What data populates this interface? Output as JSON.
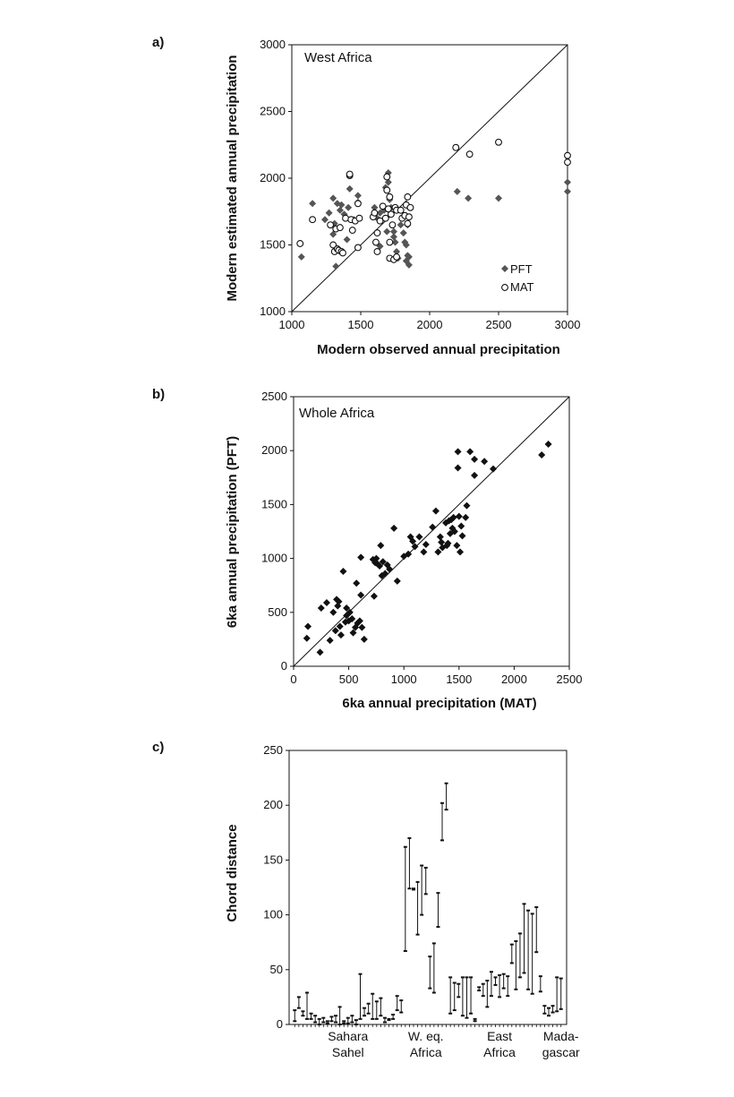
{
  "chart_data": [
    {
      "type": "scatter",
      "panel_label": "a)",
      "title": "West Africa",
      "xlabel": "Modern observed annual precipitation",
      "ylabel": "Modern estimated annual precipitation",
      "xlim": [
        1000,
        3000
      ],
      "ylim": [
        1000,
        3000
      ],
      "xticks": [
        "1000",
        "1500",
        "2000",
        "2500",
        "3000"
      ],
      "yticks": [
        "1000",
        "1500",
        "2000",
        "2500",
        "3000"
      ],
      "one_to_one_line": true,
      "legend_position": "bottom-right",
      "series": [
        {
          "name": "PFT",
          "marker": "filled-diamond",
          "color": "#555555",
          "points": [
            [
              1070,
              1410
            ],
            [
              1150,
              1810
            ],
            [
              1240,
              1690
            ],
            [
              1270,
              1740
            ],
            [
              1300,
              1850
            ],
            [
              1300,
              1580
            ],
            [
              1310,
              1660
            ],
            [
              1320,
              1340
            ],
            [
              1330,
              1810
            ],
            [
              1350,
              1760
            ],
            [
              1360,
              1800
            ],
            [
              1380,
              1730
            ],
            [
              1400,
              1540
            ],
            [
              1410,
              1780
            ],
            [
              1420,
              1920
            ],
            [
              1450,
              1690
            ],
            [
              1480,
              1820
            ],
            [
              1480,
              1870
            ],
            [
              1600,
              1780
            ],
            [
              1620,
              1700
            ],
            [
              1640,
              1490
            ],
            [
              1640,
              1740
            ],
            [
              1670,
              1760
            ],
            [
              1680,
              1930
            ],
            [
              1690,
              1600
            ],
            [
              1700,
              1970
            ],
            [
              1700,
              2040
            ],
            [
              1710,
              1840
            ],
            [
              1720,
              1780
            ],
            [
              1740,
              1600
            ],
            [
              1740,
              1560
            ],
            [
              1750,
              1520
            ],
            [
              1760,
              1450
            ],
            [
              1770,
              1400
            ],
            [
              1790,
              1650
            ],
            [
              1800,
              1700
            ],
            [
              1810,
              1590
            ],
            [
              1820,
              1520
            ],
            [
              1830,
              1380
            ],
            [
              1830,
              1500
            ],
            [
              1840,
              1420
            ],
            [
              1840,
              1790
            ],
            [
              1840,
              1650
            ],
            [
              1850,
              1350
            ],
            [
              1850,
              1410
            ],
            [
              2200,
              1900
            ],
            [
              2280,
              1850
            ],
            [
              2500,
              1850
            ],
            [
              3000,
              1970
            ],
            [
              3000,
              1900
            ]
          ]
        },
        {
          "name": "MAT",
          "marker": "open-circle",
          "color": "#111111",
          "points": [
            [
              1060,
              1510
            ],
            [
              1150,
              1690
            ],
            [
              1280,
              1650
            ],
            [
              1300,
              1500
            ],
            [
              1310,
              1450
            ],
            [
              1320,
              1620
            ],
            [
              1330,
              1470
            ],
            [
              1340,
              1460
            ],
            [
              1350,
              1630
            ],
            [
              1360,
              1450
            ],
            [
              1370,
              1440
            ],
            [
              1390,
              1700
            ],
            [
              1420,
              2020
            ],
            [
              1420,
              2030
            ],
            [
              1430,
              1690
            ],
            [
              1440,
              1610
            ],
            [
              1460,
              1680
            ],
            [
              1480,
              1480
            ],
            [
              1480,
              1810
            ],
            [
              1490,
              1700
            ],
            [
              1590,
              1710
            ],
            [
              1600,
              1740
            ],
            [
              1610,
              1520
            ],
            [
              1620,
              1450
            ],
            [
              1620,
              1590
            ],
            [
              1640,
              1680
            ],
            [
              1660,
              1790
            ],
            [
              1680,
              1700
            ],
            [
              1690,
              2010
            ],
            [
              1690,
              1910
            ],
            [
              1700,
              1770
            ],
            [
              1710,
              1520
            ],
            [
              1710,
              1400
            ],
            [
              1710,
              1860
            ],
            [
              1720,
              1730
            ],
            [
              1730,
              1650
            ],
            [
              1740,
              1390
            ],
            [
              1750,
              1780
            ],
            [
              1760,
              1410
            ],
            [
              1760,
              1760
            ],
            [
              1790,
              1760
            ],
            [
              1800,
              1700
            ],
            [
              1820,
              1720
            ],
            [
              1830,
              1800
            ],
            [
              1840,
              1660
            ],
            [
              1840,
              1860
            ],
            [
              1850,
              1710
            ],
            [
              1860,
              1780
            ],
            [
              2190,
              2230
            ],
            [
              2290,
              2180
            ],
            [
              2500,
              2270
            ],
            [
              3000,
              2170
            ],
            [
              3000,
              2120
            ]
          ]
        }
      ]
    },
    {
      "type": "scatter",
      "panel_label": "b)",
      "title": "Whole Africa",
      "xlabel": "6ka annual precipitation (MAT)",
      "ylabel": "6ka annual precipitation (PFT)",
      "xlim": [
        0,
        2500
      ],
      "ylim": [
        0,
        2500
      ],
      "xticks": [
        "0",
        "500",
        "1000",
        "1500",
        "2000",
        "2500"
      ],
      "yticks": [
        "0",
        "500",
        "1000",
        "1500",
        "2000",
        "2500"
      ],
      "one_to_one_line": true,
      "series": [
        {
          "marker": "filled-diamond",
          "color": "#111111",
          "points": [
            [
              120,
              260
            ],
            [
              130,
              370
            ],
            [
              240,
              130
            ],
            [
              250,
              540
            ],
            [
              300,
              590
            ],
            [
              330,
              240
            ],
            [
              360,
              500
            ],
            [
              380,
              330
            ],
            [
              390,
              620
            ],
            [
              400,
              560
            ],
            [
              410,
              600
            ],
            [
              420,
              370
            ],
            [
              430,
              290
            ],
            [
              450,
              880
            ],
            [
              470,
              410
            ],
            [
              480,
              470
            ],
            [
              480,
              540
            ],
            [
              500,
              420
            ],
            [
              510,
              500
            ],
            [
              530,
              440
            ],
            [
              540,
              310
            ],
            [
              560,
              360
            ],
            [
              570,
              770
            ],
            [
              580,
              400
            ],
            [
              600,
              420
            ],
            [
              610,
              660
            ],
            [
              610,
              1010
            ],
            [
              620,
              360
            ],
            [
              640,
              250
            ],
            [
              720,
              990
            ],
            [
              730,
              650
            ],
            [
              740,
              960
            ],
            [
              750,
              1000
            ],
            [
              760,
              950
            ],
            [
              780,
              930
            ],
            [
              790,
              1120
            ],
            [
              800,
              840
            ],
            [
              810,
              970
            ],
            [
              830,
              860
            ],
            [
              850,
              940
            ],
            [
              870,
              900
            ],
            [
              910,
              1280
            ],
            [
              940,
              790
            ],
            [
              1000,
              1020
            ],
            [
              1040,
              1040
            ],
            [
              1060,
              1200
            ],
            [
              1080,
              1160
            ],
            [
              1100,
              1110
            ],
            [
              1140,
              1200
            ],
            [
              1180,
              1060
            ],
            [
              1200,
              1130
            ],
            [
              1260,
              1290
            ],
            [
              1290,
              1440
            ],
            [
              1310,
              1060
            ],
            [
              1330,
              1200
            ],
            [
              1340,
              1150
            ],
            [
              1350,
              1100
            ],
            [
              1380,
              1330
            ],
            [
              1390,
              1120
            ],
            [
              1400,
              1140
            ],
            [
              1410,
              1350
            ],
            [
              1420,
              1230
            ],
            [
              1430,
              1360
            ],
            [
              1440,
              1280
            ],
            [
              1450,
              1380
            ],
            [
              1460,
              1250
            ],
            [
              1480,
              1120
            ],
            [
              1490,
              1840
            ],
            [
              1490,
              1990
            ],
            [
              1500,
              1390
            ],
            [
              1510,
              1060
            ],
            [
              1520,
              1300
            ],
            [
              1530,
              1210
            ],
            [
              1560,
              1380
            ],
            [
              1570,
              1490
            ],
            [
              1600,
              1990
            ],
            [
              1640,
              1920
            ],
            [
              1640,
              1770
            ],
            [
              1730,
              1900
            ],
            [
              1810,
              1830
            ],
            [
              2250,
              1960
            ],
            [
              2310,
              2060
            ]
          ]
        }
      ]
    },
    {
      "type": "range",
      "panel_label": "c)",
      "ylabel": "Chord distance",
      "ylim": [
        0,
        250
      ],
      "yticks": [
        "0",
        "50",
        "100",
        "150",
        "200",
        "250"
      ],
      "groups": [
        {
          "label_line1": "Sahara",
          "label_line2": "Sahel"
        },
        {
          "label_line1": "W. eq.",
          "label_line2": "Africa"
        },
        {
          "label_line1": "East",
          "label_line2": "Africa"
        },
        {
          "label_line1": "Mada-",
          "label_line2": "gascar"
        }
      ],
      "ranges": [
        [
          3,
          13
        ],
        [
          15,
          25
        ],
        [
          8,
          12
        ],
        [
          5,
          29
        ],
        [
          5,
          10
        ],
        [
          2,
          8
        ],
        [
          0,
          5
        ],
        [
          2,
          6
        ],
        [
          1,
          3
        ],
        [
          3,
          7
        ],
        [
          2,
          8
        ],
        [
          0,
          16
        ],
        [
          1,
          3
        ],
        [
          1,
          6
        ],
        [
          2,
          8
        ],
        [
          0,
          4
        ],
        [
          5,
          46
        ],
        [
          8,
          15
        ],
        [
          10,
          19
        ],
        [
          5,
          28
        ],
        [
          5,
          21
        ],
        [
          8,
          24
        ],
        [
          2,
          6
        ],
        [
          4,
          5
        ],
        [
          5,
          9
        ],
        [
          13,
          26
        ],
        [
          11,
          22
        ],
        [
          67,
          162
        ],
        [
          124,
          170
        ],
        [
          124,
          123
        ],
        [
          82,
          130
        ],
        [
          100,
          145
        ],
        [
          119,
          143
        ],
        [
          33,
          62
        ],
        [
          29,
          74
        ],
        [
          89,
          120
        ],
        [
          168,
          202
        ],
        [
          196,
          220
        ],
        [
          10,
          43
        ],
        [
          13,
          38
        ],
        [
          25,
          37
        ],
        [
          8,
          43
        ],
        [
          6,
          43
        ],
        [
          10,
          43
        ],
        [
          3,
          5
        ],
        [
          31,
          34
        ],
        [
          26,
          37
        ],
        [
          16,
          40
        ],
        [
          26,
          48
        ],
        [
          43,
          36
        ],
        [
          25,
          45
        ],
        [
          33,
          46
        ],
        [
          26,
          44
        ],
        [
          56,
          73
        ],
        [
          32,
          76
        ],
        [
          43,
          83
        ],
        [
          47,
          110
        ],
        [
          32,
          104
        ],
        [
          28,
          101
        ],
        [
          66,
          107
        ],
        [
          30,
          44
        ],
        [
          10,
          17
        ],
        [
          8,
          15
        ],
        [
          11,
          17
        ],
        [
          12,
          43
        ],
        [
          14,
          42
        ]
      ]
    }
  ]
}
